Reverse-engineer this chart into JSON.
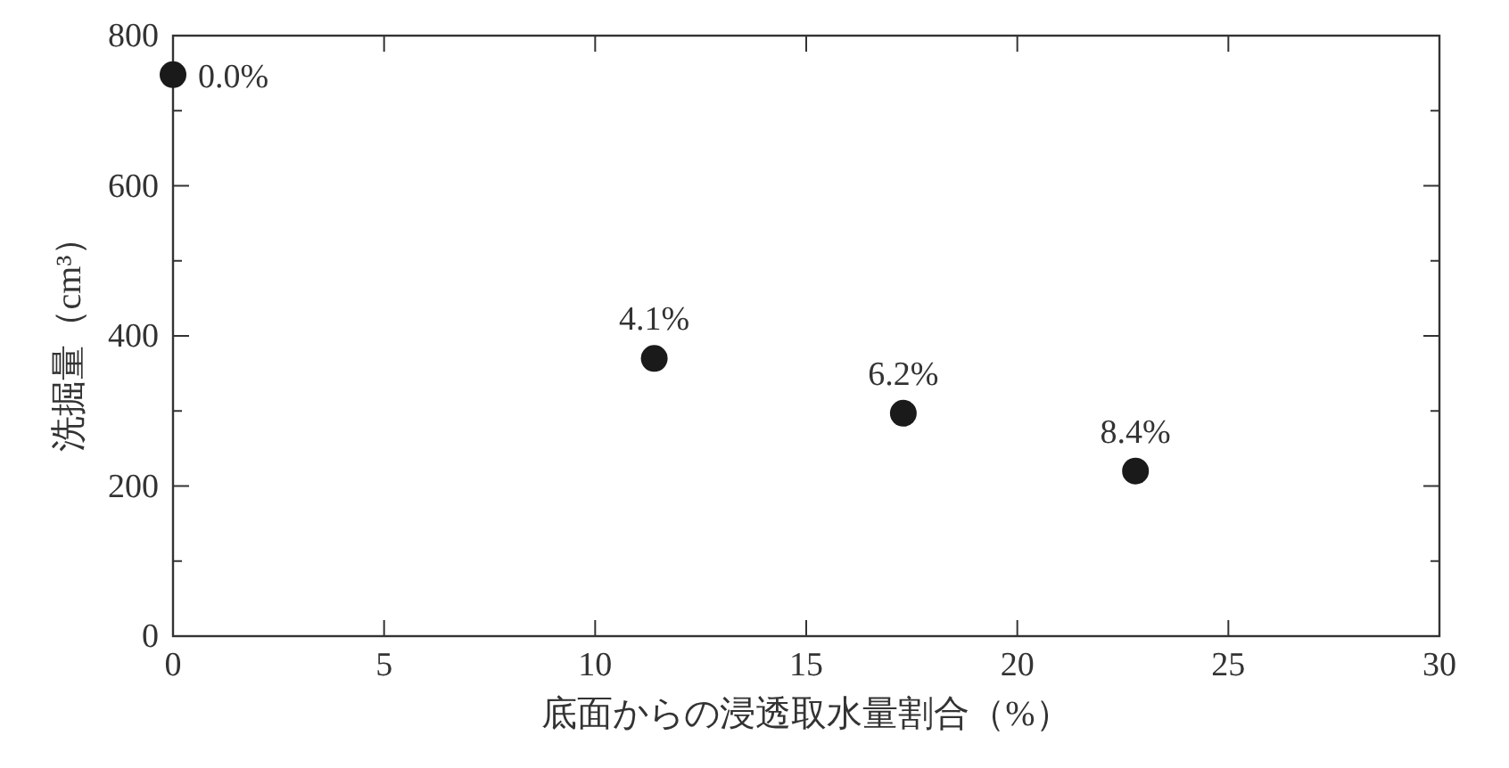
{
  "chart_data": {
    "type": "scatter",
    "xlabel": "底面からの浸透取水量割合（%）",
    "ylabel": "洗掘量（cm³）",
    "x": [
      0,
      11.4,
      17.3,
      22.8
    ],
    "series": [
      {
        "color": "#1a1a1a",
        "values": [
          748,
          370,
          297,
          220
        ]
      }
    ],
    "marker": "circle",
    "xlim": [
      0,
      30
    ],
    "xticks": [
      0,
      5,
      10,
      15,
      20,
      25,
      30
    ],
    "ylim": [
      0,
      800
    ],
    "yticks": [
      0,
      {
        "value": 100,
        "label": null
      },
      200,
      {
        "value": 300,
        "label": null
      },
      400,
      {
        "value": 500,
        "label": null
      },
      600,
      {
        "value": 700,
        "label": null
      },
      800
    ],
    "grid": false,
    "annotations": [
      {
        "text": "0.0%",
        "x": 0,
        "y": 748
      },
      {
        "text": "4.1%",
        "x": 11.4,
        "y": 370
      },
      {
        "text": "6.2%",
        "x": 17.3,
        "y": 297
      },
      {
        "text": "8.4%",
        "x": 22.8,
        "y": 220
      }
    ]
  }
}
